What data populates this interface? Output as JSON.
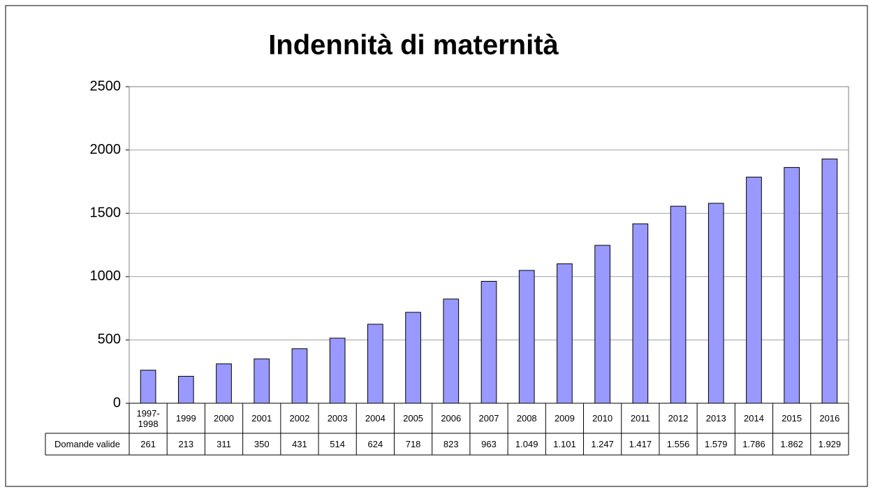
{
  "chart_data": {
    "type": "bar",
    "title": "Indennità di maternità",
    "categories": [
      "1997-1998",
      "1999",
      "2000",
      "2001",
      "2002",
      "2003",
      "2004",
      "2005",
      "2006",
      "2007",
      "2008",
      "2009",
      "2010",
      "2011",
      "2012",
      "2013",
      "2014",
      "2015",
      "2016"
    ],
    "series": [
      {
        "name": "Domande valide",
        "color": "#9999ff",
        "values": [
          261,
          213,
          311,
          350,
          431,
          514,
          624,
          718,
          823,
          963,
          1049,
          1101,
          1247,
          1417,
          1556,
          1579,
          1786,
          1862,
          1929
        ],
        "value_labels": [
          "261",
          "213",
          "311",
          "350",
          "431",
          "514",
          "624",
          "718",
          "823",
          "963",
          "1.049",
          "1.101",
          "1.247",
          "1.417",
          "1.556",
          "1.579",
          "1.786",
          "1.862",
          "1.929"
        ]
      }
    ],
    "ylim": [
      0,
      2500
    ],
    "yticks": [
      0,
      500,
      1000,
      1500,
      2000,
      2500
    ],
    "grid": true
  }
}
